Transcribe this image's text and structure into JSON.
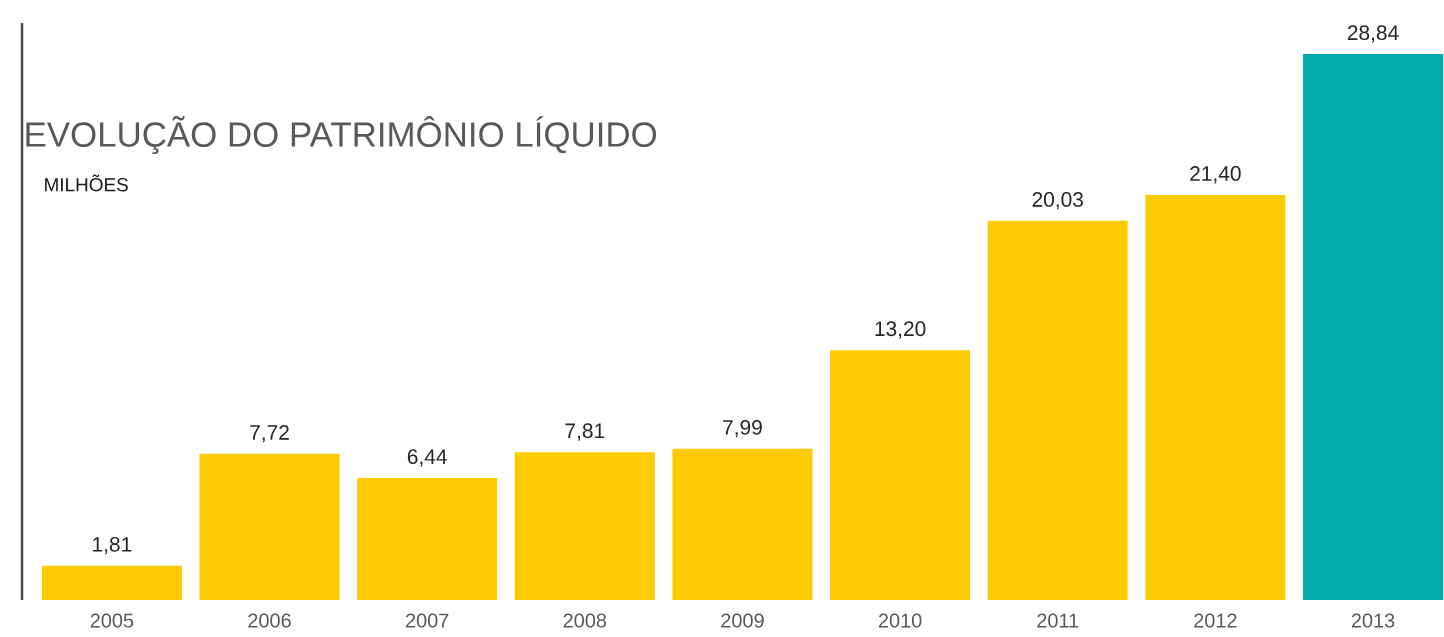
{
  "chart_data": {
    "type": "bar",
    "title": "EVOLUÇÃO DO PATRIMÔNIO LÍQUIDO",
    "ylabel": "MILHÕES",
    "categories": [
      "2005",
      "2006",
      "2007",
      "2008",
      "2009",
      "2010",
      "2011",
      "2012",
      "2013"
    ],
    "values": [
      1.81,
      7.72,
      6.44,
      7.81,
      7.99,
      13.2,
      20.03,
      21.4,
      28.84
    ],
    "value_labels": [
      "1,81",
      "7,72",
      "6,44",
      "7,81",
      "7,99",
      "13,20",
      "20,03",
      "21,40",
      "28,84"
    ],
    "colors": [
      "#fccb05",
      "#fccb05",
      "#fccb05",
      "#fccb05",
      "#fccb05",
      "#fccb05",
      "#fccb05",
      "#fccb05",
      "#00abae"
    ]
  }
}
